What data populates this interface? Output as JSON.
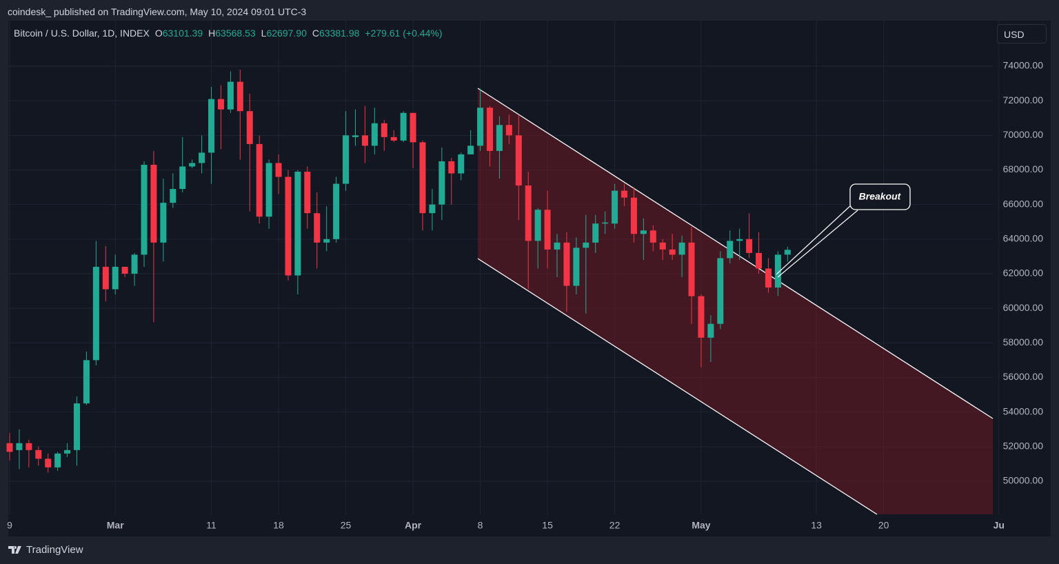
{
  "header": {
    "published": "coindesk_ published on TradingView.com, May 10, 2024 09:01 UTC-3",
    "currency": "USD"
  },
  "footer": {
    "brand": "TradingView"
  },
  "chart_data": {
    "type": "candlestick",
    "annotation": "Breakout",
    "legend": {
      "symbol": "Bitcoin / U.S. Dollar, 1D, INDEX",
      "items": [
        {
          "label": "O",
          "value": "63101.39"
        },
        {
          "label": "H",
          "value": "63568.53"
        },
        {
          "label": "L",
          "value": "62697.90"
        },
        {
          "label": "C",
          "value": "63381.98"
        }
      ],
      "change": "+279.61 (+0.44%)"
    },
    "up_color": "#22ab94",
    "down_color": "#f23645",
    "grid": true,
    "ylim": [
      48083,
      76632
    ],
    "yticks": [
      {
        "value": 50000,
        "label": "50000.00"
      },
      {
        "value": 52000,
        "label": "52000.00"
      },
      {
        "value": 54000,
        "label": "54000.00"
      },
      {
        "value": 56000,
        "label": "56000.00"
      },
      {
        "value": 58000,
        "label": "58000.00"
      },
      {
        "value": 60000,
        "label": "60000.00"
      },
      {
        "value": 62000,
        "label": "62000.00"
      },
      {
        "value": 64000,
        "label": "64000.00"
      },
      {
        "value": 66000,
        "label": "66000.00"
      },
      {
        "value": 68000,
        "label": "68000.00"
      },
      {
        "value": 70000,
        "label": "70000.00"
      },
      {
        "value": 72000,
        "label": "72000.00"
      },
      {
        "value": 74000,
        "label": "74000.00"
      }
    ],
    "categories": [
      "9",
      null,
      null,
      null,
      null,
      null,
      null,
      null,
      null,
      null,
      null,
      "Mar",
      null,
      null,
      null,
      null,
      null,
      null,
      null,
      null,
      null,
      "11",
      null,
      null,
      null,
      null,
      null,
      null,
      "18",
      null,
      null,
      null,
      null,
      null,
      null,
      "25",
      null,
      null,
      null,
      null,
      null,
      null,
      "Apr",
      null,
      null,
      null,
      null,
      null,
      null,
      "8",
      null,
      null,
      null,
      null,
      null,
      null,
      "15",
      null,
      null,
      null,
      null,
      null,
      null,
      "22",
      null,
      null,
      null,
      null,
      null,
      null,
      null,
      null,
      "May",
      null,
      null,
      null,
      null,
      null,
      null,
      null,
      null,
      null,
      null,
      null,
      "13",
      null,
      null,
      null,
      null,
      null,
      null,
      "20",
      null,
      null,
      null,
      null,
      null,
      null,
      null,
      null,
      null,
      null,
      null,
      "Ju"
    ],
    "open": [
      52200,
      51800,
      52200,
      51800,
      51300,
      50800,
      51600,
      51800,
      54500,
      57000,
      62400,
      61100,
      62400,
      62000,
      63100,
      68300,
      63800,
      66100,
      66900,
      68200,
      68400,
      69000,
      72100,
      71500,
      73100,
      71400,
      69500,
      65300,
      68400,
      67600,
      61900,
      67900,
      65500,
      63800,
      64000,
      67200,
      69900,
      70000,
      69400,
      70700,
      69900,
      69700,
      71300,
      69600,
      65500,
      66000,
      68500,
      67800,
      68900,
      69400,
      71600,
      69100,
      70600,
      70000,
      67100,
      63900,
      65700,
      63400,
      63800,
      61300,
      63500,
      63800,
      64900,
      64900,
      66800,
      66400,
      64300,
      64500,
      63800,
      63400,
      63100,
      63800,
      60700,
      58300,
      59100,
      62900,
      63900,
      64000,
      63200,
      62300,
      61200,
      63101.39,
      null,
      null,
      null,
      null,
      null,
      null,
      null,
      null,
      null,
      null,
      null,
      null,
      null,
      null,
      null,
      null,
      null,
      null,
      null,
      null,
      null,
      null
    ],
    "high": [
      52800,
      53000,
      52400,
      52000,
      51600,
      51700,
      52200,
      54900,
      57500,
      63900,
      63600,
      63100,
      62400,
      63200,
      68500,
      69100,
      67500,
      67800,
      69900,
      68600,
      70000,
      72800,
      72900,
      73700,
      73800,
      72400,
      70000,
      68600,
      68900,
      68000,
      68000,
      68200,
      66700,
      65900,
      67600,
      71400,
      71500,
      71700,
      71600,
      70900,
      70300,
      71400,
      71300,
      69700,
      66900,
      69300,
      68700,
      69000,
      70300,
      72700,
      71700,
      71100,
      71200,
      71200,
      67900,
      65800,
      66800,
      64300,
      64400,
      64100,
      65400,
      65400,
      65600,
      67200,
      67200,
      67000,
      65200,
      64800,
      64000,
      64300,
      64200,
      64700,
      60800,
      59600,
      63300,
      64500,
      64600,
      65500,
      64400,
      62900,
      63300,
      63568.53,
      null,
      null,
      null,
      null,
      null,
      null,
      null,
      null,
      null,
      null,
      null,
      null,
      null,
      null,
      null,
      null,
      null,
      null,
      null,
      null,
      null,
      null
    ],
    "low": [
      51200,
      50700,
      50800,
      50900,
      50500,
      50600,
      51400,
      50900,
      54400,
      56700,
      60400,
      60800,
      61800,
      61300,
      62400,
      59200,
      62700,
      65800,
      66700,
      68100,
      67800,
      67200,
      69200,
      71300,
      68600,
      65600,
      64900,
      64600,
      66600,
      61600,
      60800,
      64600,
      62300,
      63300,
      63800,
      66800,
      69400,
      68400,
      68900,
      69100,
      69600,
      69600,
      68100,
      64500,
      64500,
      65100,
      66000,
      67400,
      68900,
      69100,
      68200,
      67500,
      69500,
      65100,
      61100,
      62300,
      62300,
      61800,
      59800,
      60800,
      59700,
      63200,
      64300,
      64600,
      65900,
      63800,
      62800,
      63300,
      62800,
      62800,
      61800,
      59100,
      56600,
      56900,
      58800,
      62600,
      62800,
      62900,
      62000,
      60900,
      60700,
      62697.9,
      null,
      null,
      null,
      null,
      null,
      null,
      null,
      null,
      null,
      null,
      null,
      null,
      null,
      null,
      null,
      null,
      null,
      null,
      null,
      null,
      null,
      null
    ],
    "close": [
      51700,
      52200,
      51800,
      51300,
      50800,
      51600,
      51800,
      54500,
      57000,
      62400,
      61100,
      62400,
      62000,
      63100,
      68300,
      63800,
      66100,
      66900,
      68200,
      68400,
      69000,
      72100,
      71500,
      73100,
      71400,
      69500,
      65300,
      68400,
      67600,
      61900,
      67900,
      65500,
      63800,
      64000,
      67200,
      70000,
      70000,
      69400,
      70700,
      69900,
      69700,
      71300,
      69600,
      65500,
      66000,
      68500,
      67800,
      68900,
      69400,
      71600,
      69100,
      70600,
      70000,
      67100,
      63900,
      65700,
      63400,
      63800,
      61300,
      63500,
      63800,
      64900,
      64960,
      66800,
      66400,
      64300,
      64500,
      63800,
      63400,
      63100,
      63800,
      60700,
      58300,
      59100,
      62900,
      63900,
      64000,
      63200,
      62300,
      61200,
      63100,
      63381.98,
      null,
      null,
      null,
      null,
      null,
      null,
      null,
      null,
      null,
      null,
      null,
      null,
      null,
      null,
      null,
      null,
      null,
      null,
      null,
      null,
      null,
      null
    ]
  }
}
